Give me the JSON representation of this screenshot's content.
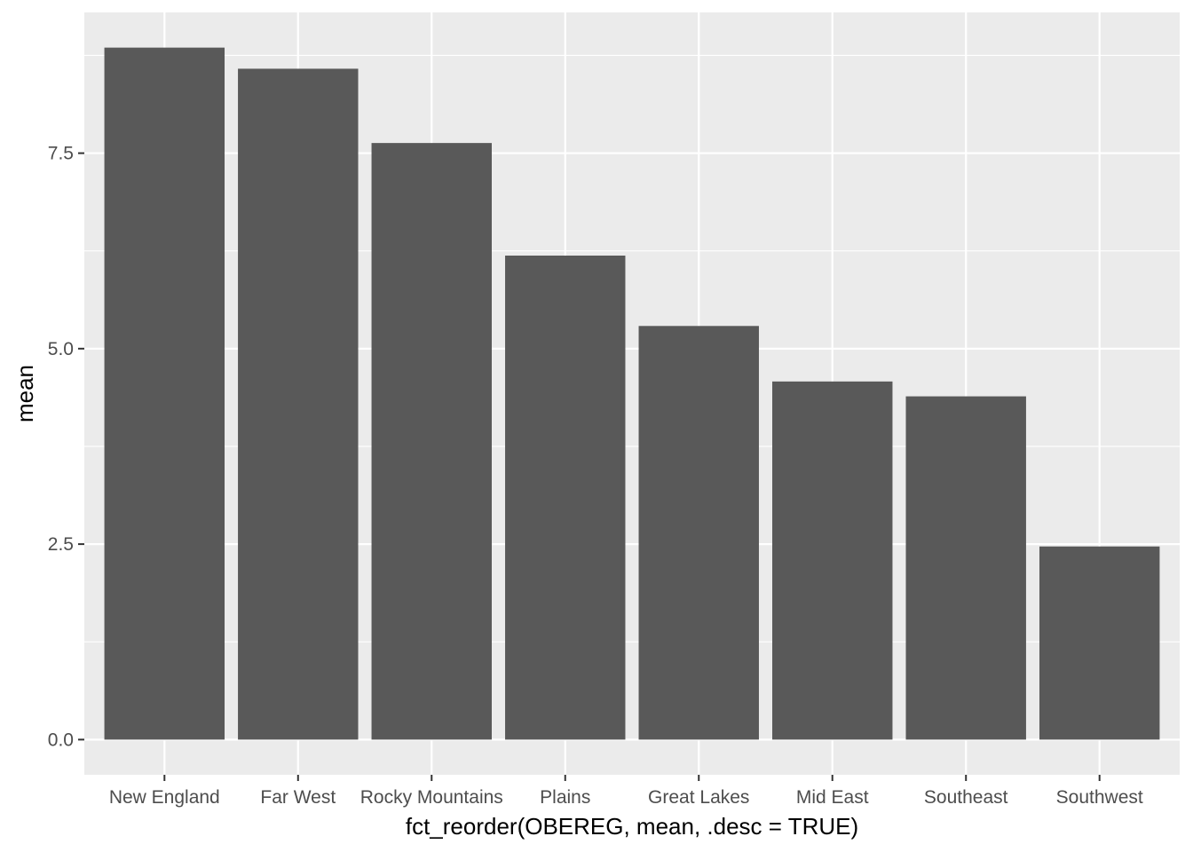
{
  "chart_data": {
    "type": "bar",
    "title": "",
    "xlabel": "fct_reorder(OBEREG, mean, .desc = TRUE)",
    "ylabel": "mean",
    "categories": [
      "New England",
      "Far West",
      "Rocky Mountains",
      "Plains",
      "Great Lakes",
      "Mid East",
      "Southeast",
      "Southwest"
    ],
    "values": [
      8.85,
      8.58,
      7.63,
      6.19,
      5.29,
      4.58,
      4.39,
      2.47
    ],
    "ylim": [
      -0.45,
      9.3
    ],
    "yticks": [
      0.0,
      2.5,
      5.0,
      7.5
    ],
    "ytick_labels": [
      "0.0",
      "2.5",
      "5.0",
      "7.5"
    ],
    "grid": true,
    "legend": "none",
    "colors": {
      "bar": "#595959",
      "panel": "#ebebeb",
      "grid": "#ffffff",
      "tick": "#4d4d4d"
    }
  }
}
